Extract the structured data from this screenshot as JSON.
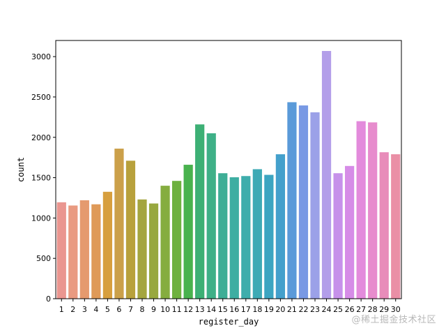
{
  "chart_data": {
    "type": "bar",
    "title": "",
    "xlabel": "register_day",
    "ylabel": "count",
    "ylim": [
      0,
      3200
    ],
    "yticks": [
      0,
      500,
      1000,
      1500,
      2000,
      2500,
      3000
    ],
    "grid": false,
    "categories": [
      "1",
      "2",
      "3",
      "4",
      "5",
      "6",
      "7",
      "8",
      "9",
      "10",
      "11",
      "12",
      "13",
      "14",
      "15",
      "16",
      "17",
      "18",
      "19",
      "20",
      "21",
      "22",
      "23",
      "24",
      "25",
      "26",
      "27",
      "28",
      "29",
      "30"
    ],
    "values": [
      1195,
      1155,
      1220,
      1170,
      1325,
      1860,
      1710,
      1230,
      1180,
      1400,
      1460,
      1660,
      2160,
      2050,
      1555,
      1505,
      1520,
      1605,
      1535,
      1790,
      2435,
      2395,
      2310,
      3070,
      1555,
      1645,
      2200,
      2185,
      1815,
      1790
    ],
    "colors": [
      "#ea9690",
      "#e99a81",
      "#e59a6e",
      "#df9a58",
      "#d79f3e",
      "#cba04a",
      "#b8a13c",
      "#a4a53f",
      "#98a83f",
      "#85ad3f",
      "#6eb13f",
      "#49b24e",
      "#3db075",
      "#3eb087",
      "#3eae96",
      "#3eaea2",
      "#3eadac",
      "#3eaab5",
      "#3ca5c1",
      "#44a0cc",
      "#5a9ad9",
      "#7899e4",
      "#9ba1e8",
      "#b39ee9",
      "#c691ea",
      "#d68ce7",
      "#e38bdc",
      "#e78ccd",
      "#e88cba",
      "#ea8fa6"
    ]
  },
  "watermark": "@稀土掘金技术社区"
}
